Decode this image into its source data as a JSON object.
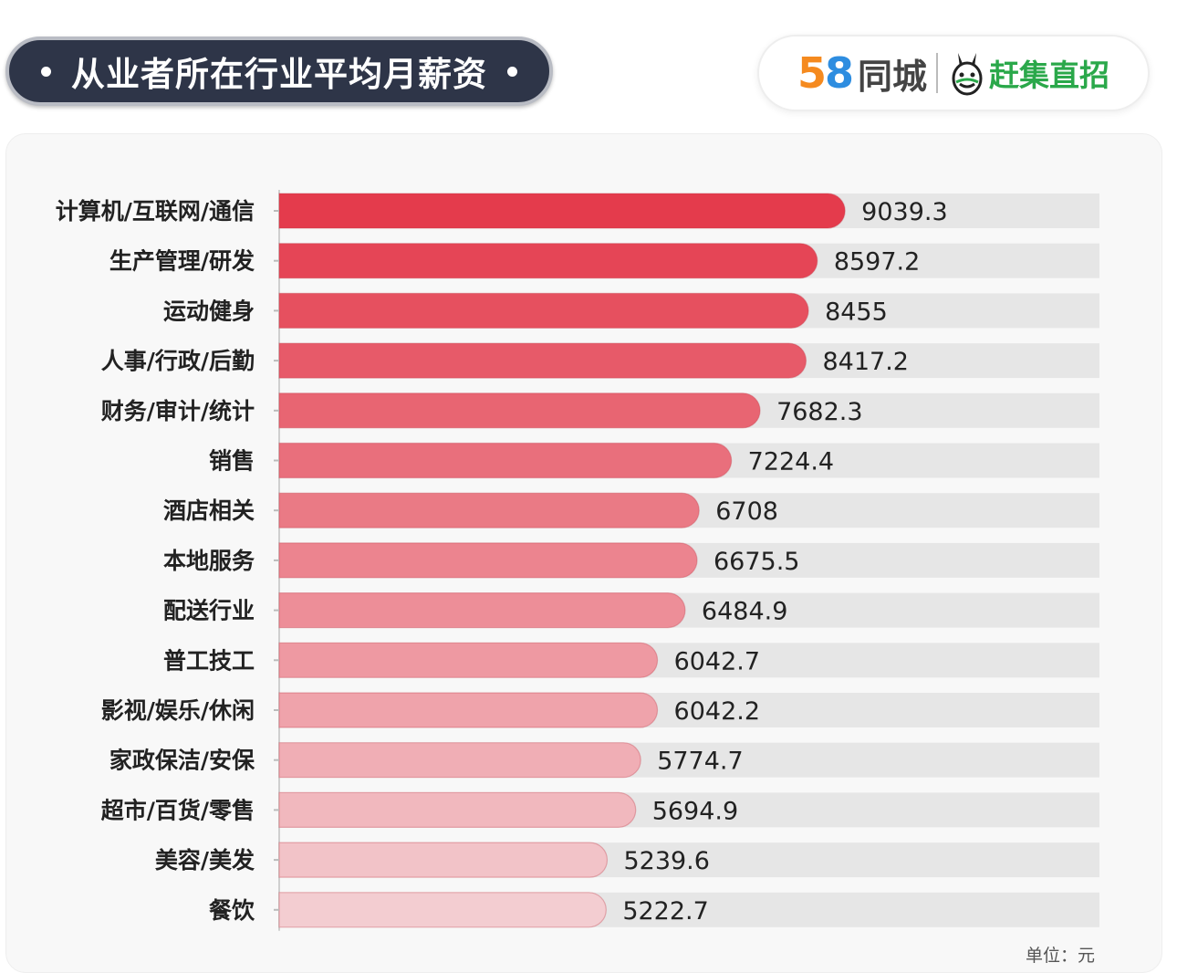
{
  "header": {
    "title": "从业者所在行业平均月薪资",
    "logo_58_digit5": "5",
    "logo_58_digit8": "8",
    "logo_tongcheng": "同城",
    "logo_ganji": "赶集直招"
  },
  "colors": {
    "title_bg": "#2e3548",
    "bar_top": "#e43b4c",
    "bar_bottom": "#f3cdd1",
    "track": "#e6e6e6"
  },
  "chart_data": {
    "type": "bar",
    "orientation": "horizontal",
    "title": "从业者所在行业平均月薪资",
    "unit_label": "单位：元",
    "categories": [
      "计算机/互联网/通信",
      "生产管理/研发",
      "运动健身",
      "人事/行政/后勤",
      "财务/审计/统计",
      "销售",
      "酒店相关",
      "本地服务",
      "配送行业",
      "普工技工",
      "影视/娱乐/休闲",
      "家政保洁/安保",
      "超市/百货/零售",
      "美容/美发",
      "餐饮"
    ],
    "values": [
      9039.3,
      8597.2,
      8455,
      8417.2,
      7682.3,
      7224.4,
      6708,
      6675.5,
      6484.9,
      6042.7,
      6042.2,
      5774.7,
      5694.9,
      5239.6,
      5222.7
    ],
    "value_labels": [
      "9039.3",
      "8597.2",
      "8455",
      "8417.2",
      "7682.3",
      "7224.4",
      "6708",
      "6675.5",
      "6484.9",
      "6042.7",
      "6042.2",
      "5774.7",
      "5694.9",
      "5239.6",
      "5222.7"
    ],
    "xlim": [
      0,
      11400
    ],
    "grid": false,
    "legend": "none"
  }
}
